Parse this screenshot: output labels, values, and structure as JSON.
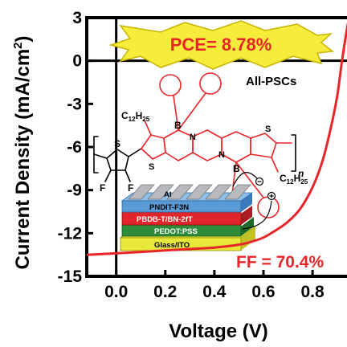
{
  "chart_data": {
    "type": "line",
    "xlabel": "Voltage (V)",
    "ylabel": "Current Density (mA/cm",
    "ylabel_sup": "2",
    "ylabel_close": ")",
    "xlim": [
      -0.12,
      0.96
    ],
    "ylim": [
      -15,
      3
    ],
    "x_ticks": [
      0.0,
      0.2,
      0.4,
      0.6,
      0.8
    ],
    "x_tick_labels": [
      "0.0",
      "0.2",
      "0.4",
      "0.6",
      "0.8"
    ],
    "y_ticks": [
      3,
      0,
      -3,
      -6,
      -9,
      -12,
      -15
    ],
    "y_tick_labels": [
      "3",
      "0",
      "-3",
      "-6",
      "-9",
      "-12",
      "-15"
    ],
    "grid": false,
    "series": [
      {
        "color": "#e8262a",
        "x": [
          -0.12,
          0.0,
          0.1,
          0.2,
          0.3,
          0.4,
          0.5,
          0.55,
          0.6,
          0.65,
          0.7,
          0.75,
          0.8,
          0.84,
          0.87,
          0.9,
          0.92,
          0.94,
          0.95
        ],
        "y": [
          -13.5,
          -13.4,
          -13.3,
          -13.2,
          -13.1,
          -13.0,
          -12.8,
          -12.6,
          -12.3,
          -11.8,
          -11.2,
          -10.3,
          -8.8,
          -7.0,
          -5.0,
          -2.5,
          0.0,
          2.2,
          3.0
        ]
      }
    ],
    "annotations": {
      "pce": "PCE= 8.78%",
      "ff": "FF = 70.4%",
      "device_type": "All-PSCs"
    }
  },
  "inset": {
    "polymer": {
      "side_chain_top": "C",
      "side_chain_top_sub": "12",
      "side_chain_top_h": "H",
      "side_chain_top_hsub": "25",
      "side_chain_bottom": "C",
      "side_chain_bottom_sub": "12",
      "side_chain_bottom_h": "H",
      "side_chain_bottom_hsub": "25",
      "atom_s": "S",
      "atom_f": "F",
      "atom_b": "B",
      "atom_n": "N",
      "repeat": "n"
    },
    "device_layers": [
      "Al",
      "PNDIT-F3N",
      "PBDB-T/BN-2fT",
      "PEDOT:PSS",
      "Glass/ITO"
    ],
    "terminal_minus": "⊖",
    "terminal_plus": "⊕"
  },
  "colors": {
    "curve": "#e8262a",
    "pce_text": "#e8262a",
    "pce_burst": "#f5ec3c",
    "molecule": "#e8262a",
    "layer_al": "#b7b9bd",
    "layer_pndit": "#5a9bd5",
    "layer_active": "#e0262a",
    "layer_pedot": "#2e8b3a",
    "layer_glass": "#e8e83a"
  }
}
